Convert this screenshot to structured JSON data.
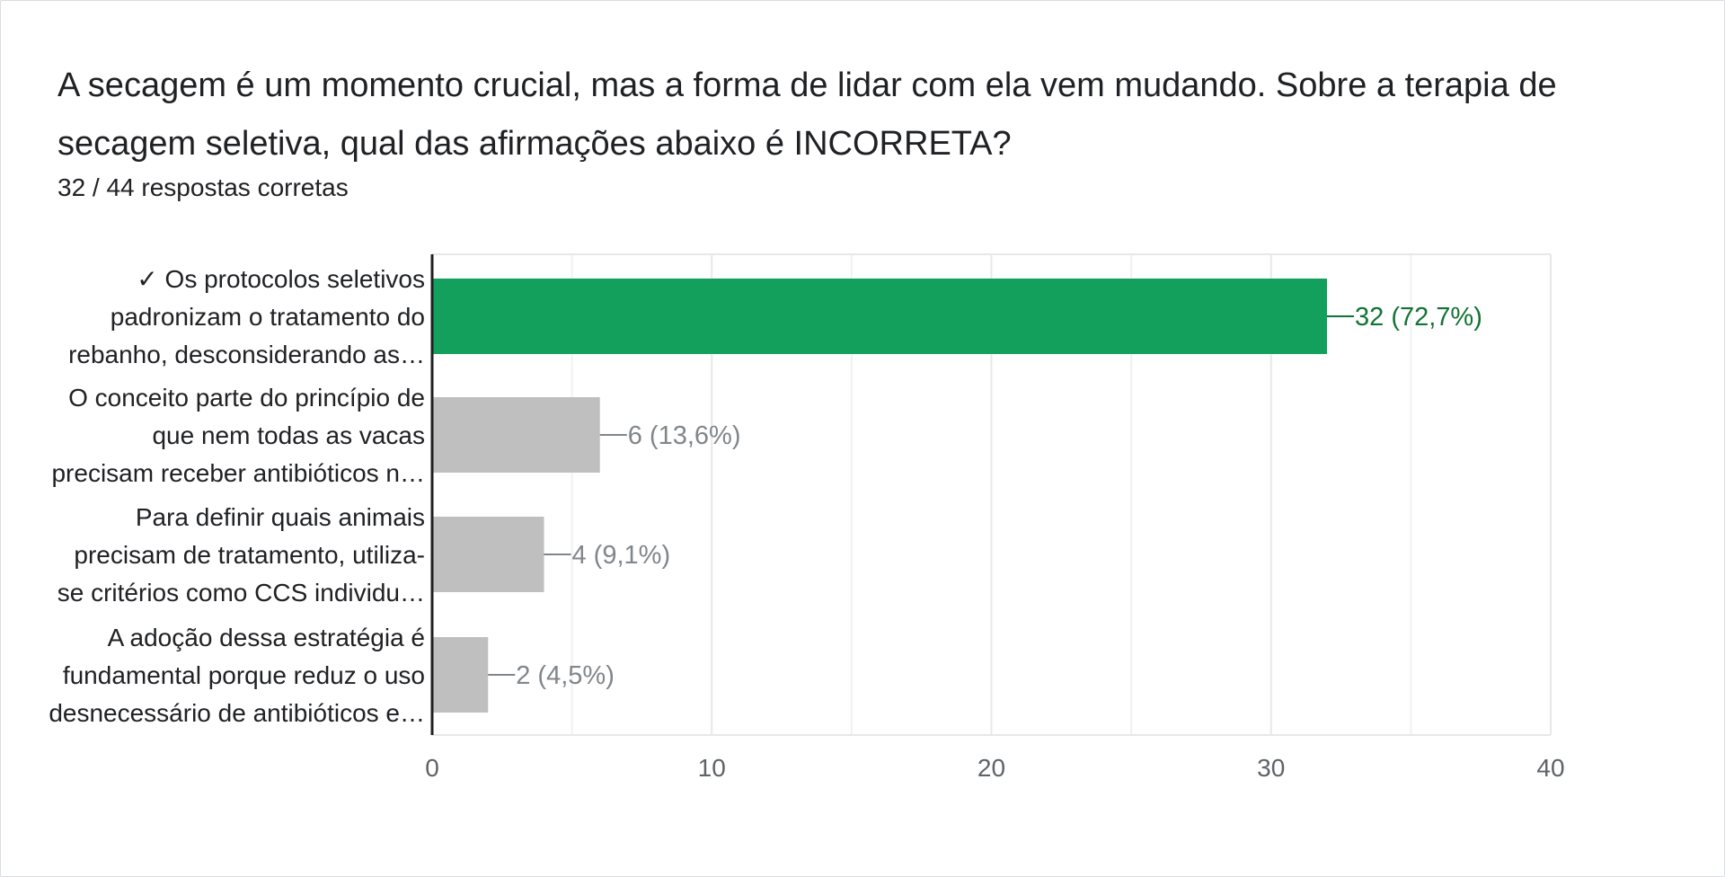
{
  "question": {
    "title": "A secagem é um momento crucial, mas a forma de lidar com ela vem mudando. Sobre a terapia de secagem seletiva, qual das afirmações abaixo é INCORRETA?",
    "score": "32 / 44 respostas corretas"
  },
  "colors": {
    "correct_bar": "#12a05c",
    "correct_label": "#137333",
    "other_bar": "#bfbfbf",
    "other_label": "#80868b",
    "axis": "#202124",
    "grid": "#e8e8e8",
    "tick_text": "#5f6368",
    "category_text": "#202124"
  },
  "chart_data": {
    "type": "bar",
    "orientation": "horizontal",
    "categories": [
      {
        "lines": [
          "✓ Os protocolos seletivos",
          "padronizam o tratamento do",
          "rebanho, desconsiderando as…"
        ],
        "value": 32,
        "label": "32 (72,7%)",
        "correct": true
      },
      {
        "lines": [
          "O conceito parte do princípio de",
          "que nem todas as vacas",
          "precisam receber antibióticos n…"
        ],
        "value": 6,
        "label": "6 (13,6%)",
        "correct": false
      },
      {
        "lines": [
          "Para definir quais animais",
          "precisam de tratamento, utiliza-",
          "se critérios como CCS individu…"
        ],
        "value": 4,
        "label": "4 (9,1%)",
        "correct": false
      },
      {
        "lines": [
          "A adoção dessa estratégia é",
          "fundamental porque reduz o uso",
          "desnecessário de antibióticos e…"
        ],
        "value": 2,
        "label": "2 (4,5%)",
        "correct": false
      }
    ],
    "xlim": [
      0,
      40
    ],
    "ticks": [
      0,
      10,
      20,
      30,
      40
    ],
    "tick_labels": [
      "0",
      "10",
      "20",
      "30",
      "40"
    ],
    "minor_grid": [
      5,
      15,
      25,
      35
    ],
    "grid": true,
    "legend": "none"
  }
}
